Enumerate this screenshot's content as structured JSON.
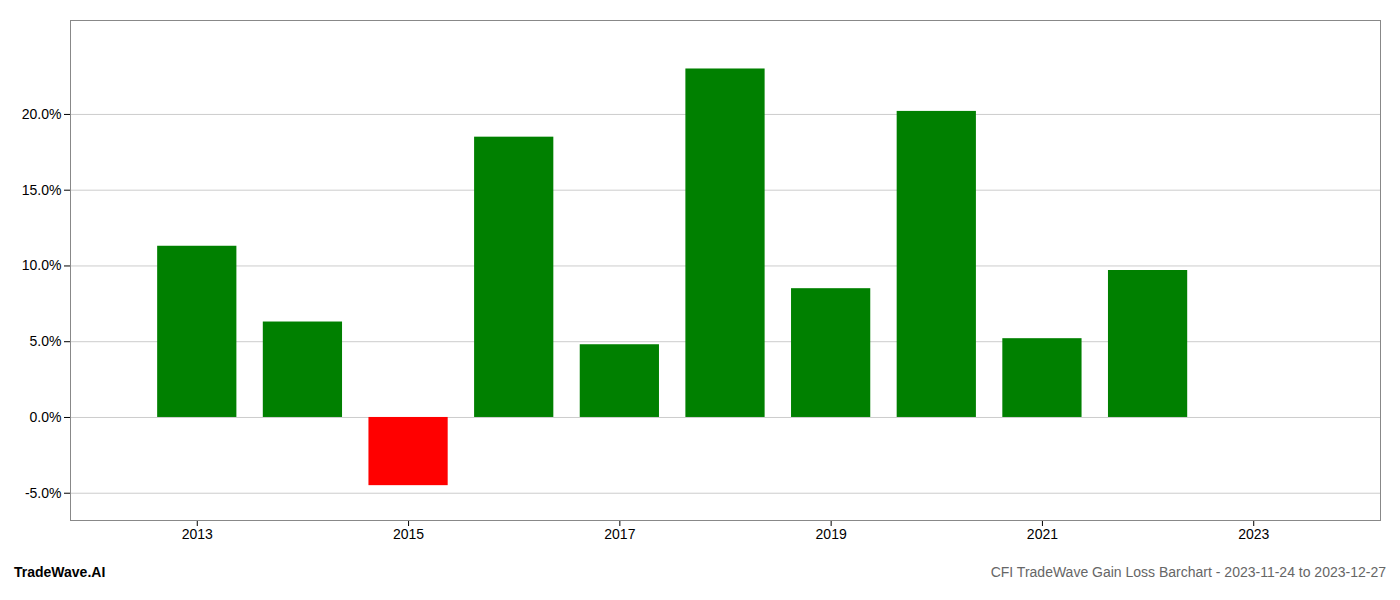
{
  "chart_data": {
    "type": "bar",
    "x": [
      2013,
      2014,
      2015,
      2016,
      2017,
      2018,
      2019,
      2020,
      2021,
      2022,
      2023
    ],
    "values": [
      0.113,
      0.063,
      -0.045,
      0.185,
      0.048,
      0.23,
      0.085,
      0.202,
      0.052,
      0.097,
      null
    ],
    "colors": [
      "#008000",
      "#008000",
      "#ff0000",
      "#008000",
      "#008000",
      "#008000",
      "#008000",
      "#008000",
      "#008000",
      "#008000",
      null
    ],
    "xlim": [
      2011.8,
      2024.2
    ],
    "xticks": [
      2013,
      2015,
      2017,
      2019,
      2021,
      2023
    ],
    "ylim": [
      -0.068,
      0.262
    ],
    "yticks": [
      {
        "value": -0.05,
        "label": "-5.0%"
      },
      {
        "value": 0.0,
        "label": "0.0%"
      },
      {
        "value": 0.05,
        "label": "5.0%"
      },
      {
        "value": 0.1,
        "label": "10.0%"
      },
      {
        "value": 0.15,
        "label": "15.0%"
      },
      {
        "value": 0.2,
        "label": "20.0%"
      }
    ],
    "grid": true,
    "annotations": [
      "TradeWave.AI",
      "CFI TradeWave Gain Loss Barchart - 2023-11-24 to 2023-12-27"
    ]
  }
}
